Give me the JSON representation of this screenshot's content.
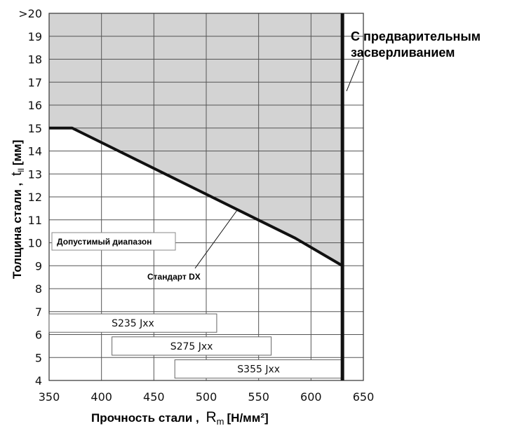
{
  "chart_data": {
    "type": "line",
    "x_ticks": [
      "350",
      "400",
      "450",
      "500",
      "550",
      "600",
      "650"
    ],
    "y_ticks": [
      "4",
      "5",
      "6",
      "7",
      "8",
      "9",
      "10",
      "11",
      "12",
      "13",
      "14",
      "15",
      "16",
      "17",
      "18",
      "19",
      ">20"
    ],
    "xlim": [
      350,
      650
    ],
    "ylim": [
      4,
      20
    ],
    "grid": true,
    "shaded_region_above_series": true,
    "series": [
      {
        "x": [
          350,
          372,
          585,
          630
        ],
        "y": [
          15,
          15,
          10.2,
          9
        ]
      }
    ],
    "limit_line": {
      "x": 630,
      "label_lines": [
        "С предварительным",
        "засверливанием"
      ]
    },
    "annotations": {
      "allowed_range": "Допустимый диапазон",
      "standard": "Стандарт DX"
    },
    "grade_bars": [
      {
        "label": "S235 Jxx",
        "x_start": 350,
        "x_end": 510,
        "y_low": 6.1,
        "y_high": 6.9
      },
      {
        "label": "S275 Jxx",
        "x_start": 410,
        "x_end": 562,
        "y_low": 5.1,
        "y_high": 5.9
      },
      {
        "label": "S355 Jxx",
        "x_start": 470,
        "x_end": 630,
        "y_low": 4.1,
        "y_high": 4.9
      }
    ],
    "xlabel": {
      "text": "Прочность стали ,",
      "symbol": "R",
      "subscript": "m",
      "unit": "[Н/мм²]"
    },
    "ylabel": {
      "text": "Толщина стали ,",
      "symbol": "t",
      "subscript": "ll",
      "unit": "[мм]"
    },
    "colors": {
      "shade": "#d3d3d3",
      "line": "#111111",
      "grid": "#555555"
    }
  }
}
